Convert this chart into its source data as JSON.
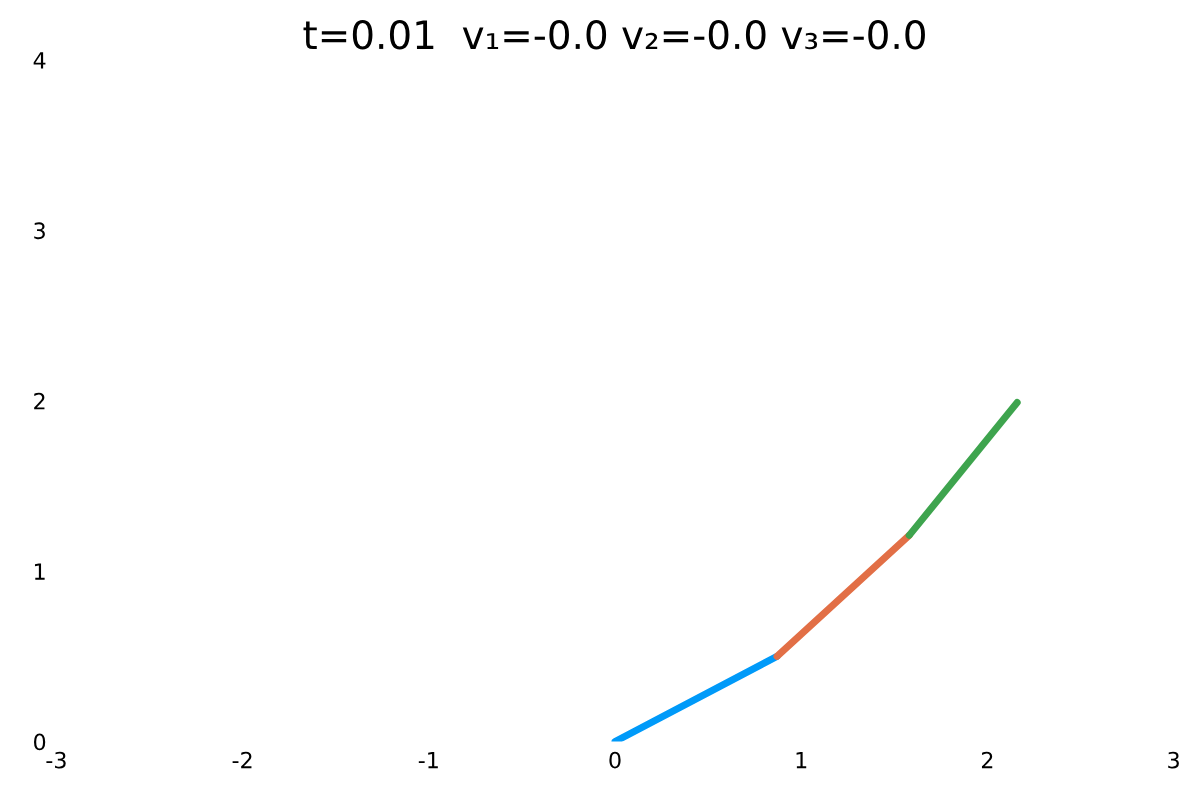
{
  "chart_data": {
    "type": "line",
    "title": "t=0.01  v₁=-0.0 v₂=-0.0 v₃=-0.0",
    "series": [
      {
        "color": "#009af9",
        "x": [
          0,
          0.87
        ],
        "values": [
          0,
          0.5
        ]
      },
      {
        "color": "#e26f46",
        "x": [
          0.87,
          1.58
        ],
        "values": [
          0.5,
          1.21
        ]
      },
      {
        "color": "#3ea44e",
        "x": [
          1.58,
          2.16
        ],
        "values": [
          1.21,
          1.99
        ]
      }
    ],
    "xlim": [
      -3,
      3
    ],
    "ylim": [
      0,
      4
    ],
    "xticks": [
      -3,
      -2,
      -1,
      0,
      1,
      2,
      3
    ],
    "yticks": [
      0,
      1,
      2,
      3,
      4
    ],
    "grid": false,
    "legend": false,
    "marker": "none",
    "line_style": "solid"
  }
}
